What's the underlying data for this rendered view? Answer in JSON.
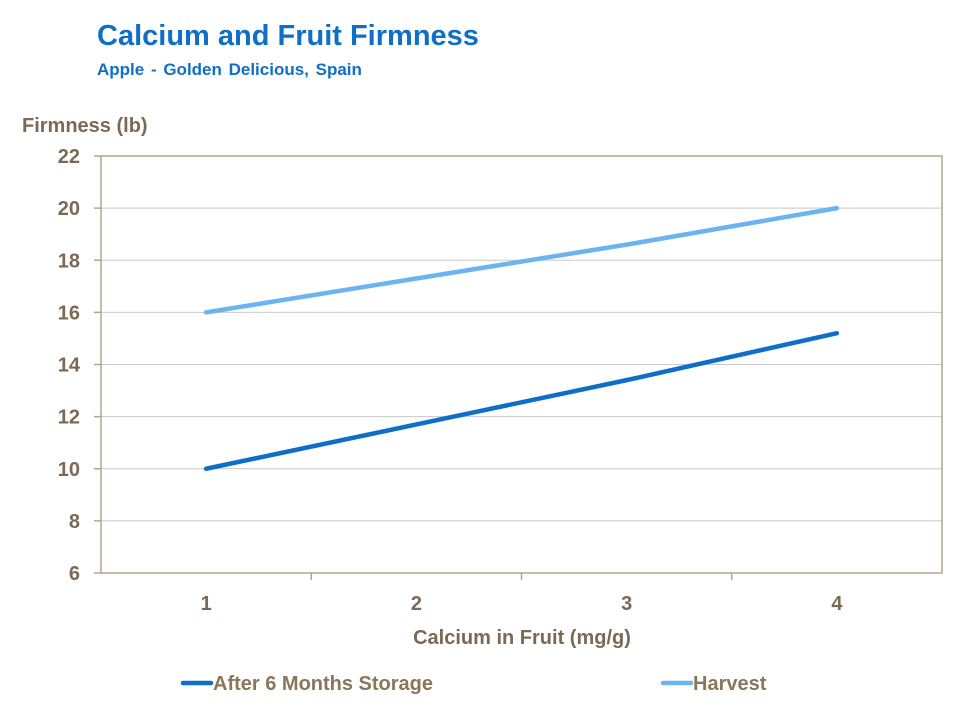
{
  "chart_data": {
    "type": "line",
    "title": "Calcium and Fruit Firmness",
    "subtitle": "Apple - Golden Delicious, Spain",
    "xlabel": "Calcium in Fruit (mg/g)",
    "ylabel": "Firmness (lb)",
    "categories": [
      "1",
      "2",
      "3",
      "4"
    ],
    "x": [
      1,
      2,
      3,
      4
    ],
    "ylim": [
      6,
      22
    ],
    "yticks": [
      6,
      8,
      10,
      12,
      14,
      16,
      18,
      20,
      22
    ],
    "grid": true,
    "legend_position": "bottom",
    "series": [
      {
        "name": "After 6 Months Storage",
        "color": "#0f6fc6",
        "values": [
          10,
          11.7,
          13.4,
          15.2
        ]
      },
      {
        "name": "Harvest",
        "color": "#6cb4f0",
        "values": [
          16,
          17.3,
          18.6,
          20
        ]
      }
    ]
  }
}
